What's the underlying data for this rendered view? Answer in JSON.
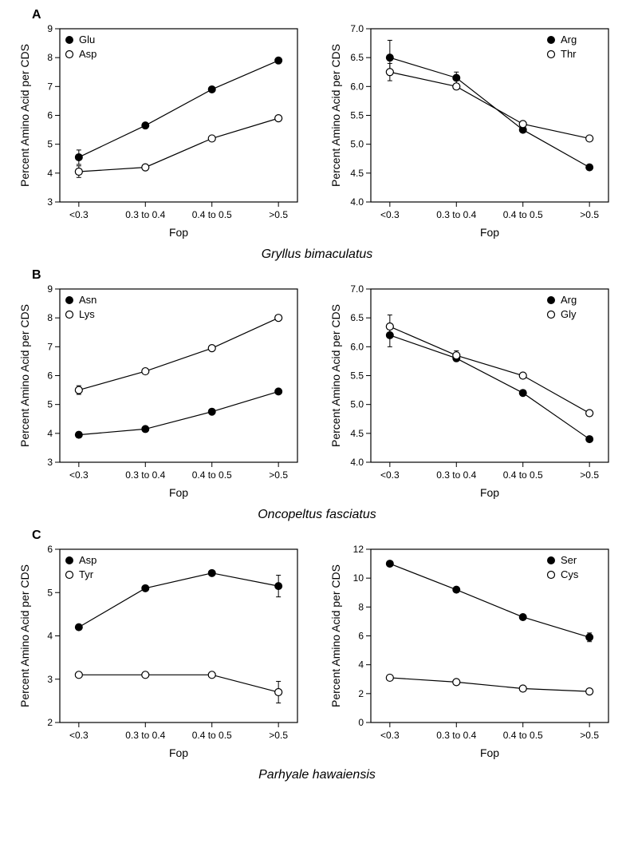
{
  "figure": {
    "background_color": "#ffffff",
    "line_color": "#000000",
    "marker_radius": 4.5,
    "font_family": "Arial",
    "axis_title_fontsize": 14,
    "tick_fontsize": 12,
    "legend_fontsize": 13,
    "panels": [
      {
        "label": "A",
        "species": "Gryllus bimaculatus",
        "left": {
          "xlabel": "Fop",
          "ylabel": "Percent Amino Acid per CDS",
          "x_categories": [
            "<0.3",
            "0.3 to 0.4",
            "0.4 to 0.5",
            ">0.5"
          ],
          "ylim": [
            3,
            9
          ],
          "ytick_step": 1,
          "legend_pos": "top-left",
          "series": [
            {
              "name": "Glu",
              "marker": "filled",
              "values": [
                4.55,
                5.65,
                6.9,
                7.9
              ],
              "err": [
                0.25,
                0.05,
                0,
                0
              ]
            },
            {
              "name": "Asp",
              "marker": "open",
              "values": [
                4.05,
                4.2,
                5.2,
                5.9
              ],
              "err": [
                0.2,
                0,
                0,
                0
              ]
            }
          ]
        },
        "right": {
          "xlabel": "Fop",
          "ylabel": "Percent Amino Acid per CDS",
          "x_categories": [
            "<0.3",
            "0.3 to 0.4",
            "0.4 to 0.5",
            ">0.5"
          ],
          "ylim": [
            4.0,
            7.0
          ],
          "ytick_step": 0.5,
          "legend_pos": "top-right",
          "series": [
            {
              "name": "Arg",
              "marker": "filled",
              "values": [
                6.5,
                6.15,
                5.25,
                4.6
              ],
              "err": [
                0.3,
                0.1,
                0,
                0
              ]
            },
            {
              "name": "Thr",
              "marker": "open",
              "values": [
                6.25,
                6.0,
                5.35,
                5.1
              ],
              "err": [
                0.15,
                0.05,
                0,
                0
              ]
            }
          ]
        }
      },
      {
        "label": "B",
        "species": "Oncopeltus fasciatus",
        "left": {
          "xlabel": "Fop",
          "ylabel": "Percent Amino Acid per CDS",
          "x_categories": [
            "<0.3",
            "0.3 to 0.4",
            "0.4 to 0.5",
            ">0.5"
          ],
          "ylim": [
            3,
            9
          ],
          "ytick_step": 1,
          "legend_pos": "top-left",
          "series": [
            {
              "name": "Asn",
              "marker": "filled",
              "values": [
                3.95,
                4.15,
                4.75,
                5.45
              ],
              "err": [
                0.1,
                0,
                0,
                0
              ]
            },
            {
              "name": "Lys",
              "marker": "open",
              "values": [
                5.5,
                6.15,
                6.95,
                8.0
              ],
              "err": [
                0.15,
                0,
                0,
                0
              ]
            }
          ]
        },
        "right": {
          "xlabel": "Fop",
          "ylabel": "Percent Amino Acid per CDS",
          "x_categories": [
            "<0.3",
            "0.3 to 0.4",
            "0.4 to 0.5",
            ">0.5"
          ],
          "ylim": [
            4.0,
            7.0
          ],
          "ytick_step": 0.5,
          "legend_pos": "top-right",
          "series": [
            {
              "name": "Arg",
              "marker": "filled",
              "values": [
                6.2,
                5.8,
                5.2,
                4.4
              ],
              "err": [
                0.2,
                0.05,
                0,
                0
              ]
            },
            {
              "name": "Gly",
              "marker": "open",
              "values": [
                6.35,
                5.85,
                5.5,
                4.85
              ],
              "err": [
                0.2,
                0.08,
                0,
                0
              ]
            }
          ]
        }
      },
      {
        "label": "C",
        "species": "Parhyale hawaiensis",
        "left": {
          "xlabel": "Fop",
          "ylabel": "Percent Amino Acid per CDS",
          "x_categories": [
            "<0.3",
            "0.3 to 0.4",
            "0.4 to 0.5",
            ">0.5"
          ],
          "ylim": [
            2,
            6
          ],
          "ytick_step": 1,
          "legend_pos": "top-left",
          "series": [
            {
              "name": "Asp",
              "marker": "filled",
              "values": [
                4.2,
                5.1,
                5.45,
                5.15
              ],
              "err": [
                0,
                0,
                0,
                0.25
              ]
            },
            {
              "name": "Tyr",
              "marker": "open",
              "values": [
                3.1,
                3.1,
                3.1,
                2.7
              ],
              "err": [
                0,
                0,
                0,
                0.25
              ]
            }
          ]
        },
        "right": {
          "xlabel": "Fop",
          "ylabel": "Percent Amino Acid per CDS",
          "x_categories": [
            "<0.3",
            "0.3 to 0.4",
            "0.4 to 0.5",
            ">0.5"
          ],
          "ylim": [
            0,
            12
          ],
          "ytick_step": 2,
          "legend_pos": "top-right",
          "series": [
            {
              "name": "Ser",
              "marker": "filled",
              "values": [
                11.0,
                9.2,
                7.3,
                5.9
              ],
              "err": [
                0,
                0,
                0,
                0.3
              ]
            },
            {
              "name": "Cys",
              "marker": "open",
              "values": [
                3.1,
                2.8,
                2.35,
                2.15
              ],
              "err": [
                0,
                0,
                0,
                0
              ]
            }
          ]
        }
      }
    ]
  }
}
